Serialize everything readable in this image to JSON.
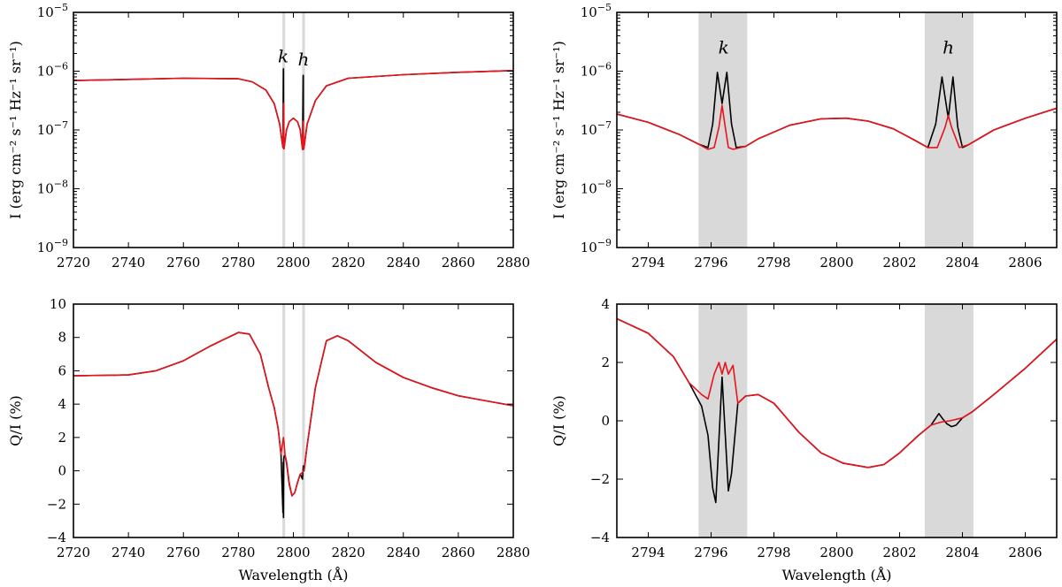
{
  "colors": {
    "series_black": "#000000",
    "series_red": "#e8131b",
    "shade": "#d9d9d9"
  },
  "chart_data": [
    {
      "id": "top-left",
      "type": "line",
      "yscale": "log",
      "xlim": [
        2720,
        2880
      ],
      "ylim_exp": [
        -9,
        -5
      ],
      "xticks": [
        2720,
        2740,
        2760,
        2780,
        2800,
        2820,
        2840,
        2860,
        2880
      ],
      "ytick_exps": [
        -9,
        -8,
        -7,
        -6,
        -5
      ],
      "xlabel": "",
      "ylabel": "I (erg cm⁻² s⁻¹ Hz⁻¹ sr⁻¹)",
      "shaded_bands": [
        [
          2796.0,
          2797.0
        ],
        [
          2803.2,
          2804.2
        ]
      ],
      "line_labels": [
        {
          "text": "k",
          "x": 2796.3,
          "y_exp": -5.85
        },
        {
          "text": "h",
          "x": 2803.7,
          "y_exp": -5.9
        }
      ],
      "series": [
        {
          "name": "black",
          "x": [
            2720,
            2740,
            2760,
            2780,
            2785,
            2790,
            2793,
            2795,
            2796.2,
            2796.35,
            2796.4,
            2796.45,
            2796.6,
            2797.5,
            2798.5,
            2800,
            2801.5,
            2802.5,
            2803.3,
            2803.55,
            2803.6,
            2803.65,
            2803.8,
            2805,
            2808,
            2812,
            2820,
            2840,
            2860,
            2880
          ],
          "y_exp": [
            -6.16,
            -6.14,
            -6.12,
            -6.13,
            -6.18,
            -6.32,
            -6.55,
            -6.9,
            -7.3,
            -5.97,
            -5.96,
            -7.3,
            -7.32,
            -7.0,
            -6.86,
            -6.8,
            -6.86,
            -7.0,
            -7.33,
            -6.08,
            -6.07,
            -7.33,
            -7.32,
            -6.9,
            -6.5,
            -6.25,
            -6.12,
            -6.06,
            -6.02,
            -5.99
          ]
        },
        {
          "name": "red",
          "x": [
            2720,
            2740,
            2760,
            2780,
            2785,
            2790,
            2793,
            2795,
            2796.2,
            2796.4,
            2796.45,
            2796.6,
            2797.5,
            2798.5,
            2800,
            2801.5,
            2802.5,
            2803.3,
            2803.55,
            2803.8,
            2805,
            2808,
            2812,
            2820,
            2840,
            2860,
            2880
          ],
          "y_exp": [
            -6.16,
            -6.14,
            -6.12,
            -6.13,
            -6.18,
            -6.32,
            -6.55,
            -6.9,
            -7.3,
            -6.55,
            -6.55,
            -7.32,
            -7.0,
            -6.86,
            -6.8,
            -6.86,
            -7.0,
            -7.33,
            -6.85,
            -7.32,
            -6.9,
            -6.5,
            -6.25,
            -6.12,
            -6.06,
            -6.02,
            -5.99
          ]
        }
      ]
    },
    {
      "id": "top-right",
      "type": "line",
      "yscale": "log",
      "xlim": [
        2793,
        2807
      ],
      "ylim_exp": [
        -9,
        -5
      ],
      "xticks": [
        2794,
        2796,
        2798,
        2800,
        2802,
        2804,
        2806
      ],
      "ytick_exps": [
        -9,
        -8,
        -7,
        -6,
        -5
      ],
      "xlabel": "",
      "ylabel": "I (erg cm⁻² s⁻¹ Hz⁻¹ sr⁻¹)",
      "shaded_bands": [
        [
          2795.6,
          2797.15
        ],
        [
          2802.8,
          2804.35
        ]
      ],
      "line_labels": [
        {
          "text": "k",
          "x": 2796.4,
          "y_exp": -5.7
        },
        {
          "text": "h",
          "x": 2803.55,
          "y_exp": -5.7
        }
      ],
      "series": [
        {
          "name": "black",
          "x": [
            2793,
            2794,
            2795,
            2795.6,
            2795.9,
            2796.05,
            2796.2,
            2796.35,
            2796.5,
            2796.65,
            2796.8,
            2797.1,
            2797.5,
            2798.5,
            2799.5,
            2800.3,
            2801,
            2801.8,
            2802.5,
            2802.9,
            2803.15,
            2803.35,
            2803.55,
            2803.7,
            2803.85,
            2804,
            2804.2,
            2805,
            2806,
            2807
          ],
          "y_exp": [
            -6.73,
            -6.87,
            -7.08,
            -7.24,
            -7.3,
            -6.9,
            -6.02,
            -6.55,
            -6.02,
            -6.9,
            -7.3,
            -7.28,
            -7.15,
            -6.92,
            -6.81,
            -6.8,
            -6.85,
            -6.98,
            -7.18,
            -7.3,
            -6.9,
            -6.1,
            -6.8,
            -6.1,
            -6.95,
            -7.3,
            -7.25,
            -7.0,
            -6.8,
            -6.63
          ]
        },
        {
          "name": "red",
          "x": [
            2793,
            2794,
            2795,
            2795.6,
            2795.9,
            2796.1,
            2796.25,
            2796.35,
            2796.45,
            2796.55,
            2796.7,
            2797.1,
            2797.5,
            2798.5,
            2799.5,
            2800.3,
            2801,
            2801.8,
            2802.5,
            2802.9,
            2803.2,
            2803.45,
            2803.55,
            2803.65,
            2803.9,
            2804.2,
            2805,
            2806,
            2807
          ],
          "y_exp": [
            -6.73,
            -6.87,
            -7.08,
            -7.24,
            -7.33,
            -7.3,
            -6.95,
            -6.58,
            -6.95,
            -7.3,
            -7.33,
            -7.28,
            -7.15,
            -6.92,
            -6.81,
            -6.8,
            -6.85,
            -6.98,
            -7.18,
            -7.3,
            -7.3,
            -6.95,
            -6.75,
            -6.95,
            -7.3,
            -7.25,
            -7.0,
            -6.8,
            -6.63
          ]
        }
      ]
    },
    {
      "id": "bottom-left",
      "type": "line",
      "yscale": "linear",
      "xlim": [
        2720,
        2880
      ],
      "ylim": [
        -4,
        10
      ],
      "xticks": [
        2720,
        2740,
        2760,
        2780,
        2800,
        2820,
        2840,
        2860,
        2880
      ],
      "yticks": [
        -4,
        -2,
        0,
        2,
        4,
        6,
        8,
        10
      ],
      "xlabel": "Wavelength (Å)",
      "ylabel": "Q/I (%)",
      "shaded_bands": [
        [
          2796.0,
          2797.0
        ],
        [
          2803.2,
          2804.2
        ]
      ],
      "series": [
        {
          "name": "black",
          "x": [
            2720,
            2740,
            2750,
            2760,
            2770,
            2780,
            2784,
            2788,
            2791,
            2793,
            2794.5,
            2795.5,
            2796.2,
            2796.3,
            2796.4,
            2796.5,
            2796.7,
            2797,
            2797.5,
            2798.5,
            2799.5,
            2800.5,
            2801.5,
            2802.5,
            2803.3,
            2803.6,
            2803.9,
            2805,
            2808,
            2812,
            2816,
            2820,
            2830,
            2840,
            2850,
            2860,
            2870,
            2880
          ],
          "y_exp": [
            5.7,
            5.75,
            6.0,
            6.6,
            7.5,
            8.3,
            8.2,
            7.0,
            5.0,
            3.8,
            2.5,
            1.0,
            -2.5,
            0.5,
            -2.8,
            0.7,
            0.9,
            0.9,
            0.5,
            -0.8,
            -1.5,
            -1.3,
            -0.7,
            -0.2,
            -0.5,
            0.3,
            0,
            1.5,
            5.0,
            7.8,
            8.1,
            7.8,
            6.5,
            5.6,
            5.0,
            4.5,
            4.2,
            3.9
          ]
        },
        {
          "name": "red",
          "x": [
            2720,
            2740,
            2750,
            2760,
            2770,
            2780,
            2784,
            2788,
            2791,
            2793,
            2794.5,
            2795.5,
            2796.2,
            2796.4,
            2796.6,
            2797,
            2797.5,
            2798.5,
            2799.5,
            2800.5,
            2801.5,
            2802.5,
            2803.3,
            2803.6,
            2803.9,
            2805,
            2808,
            2812,
            2816,
            2820,
            2830,
            2840,
            2850,
            2860,
            2870,
            2880
          ],
          "y_exp": [
            5.7,
            5.75,
            6.0,
            6.6,
            7.5,
            8.3,
            8.2,
            7.0,
            5.0,
            3.8,
            2.5,
            1.0,
            1.8,
            2.0,
            1.7,
            0.9,
            0.6,
            -0.7,
            -1.5,
            -1.3,
            -0.7,
            -0.2,
            -0.1,
            0,
            0.05,
            1.5,
            5.0,
            7.8,
            8.1,
            7.8,
            6.5,
            5.6,
            5.0,
            4.5,
            4.2,
            3.9
          ]
        }
      ]
    },
    {
      "id": "bottom-right",
      "type": "line",
      "yscale": "linear",
      "xlim": [
        2793,
        2807
      ],
      "ylim": [
        -4,
        4
      ],
      "xticks": [
        2794,
        2796,
        2798,
        2800,
        2802,
        2804,
        2806
      ],
      "yticks": [
        -4,
        -2,
        0,
        2,
        4
      ],
      "xlabel": "Wavelength (Å)",
      "ylabel": "Q/I (%)",
      "shaded_bands": [
        [
          2795.6,
          2797.15
        ],
        [
          2802.8,
          2804.35
        ]
      ],
      "series": [
        {
          "name": "black",
          "x": [
            2793,
            2794,
            2794.8,
            2795.3,
            2795.7,
            2795.9,
            2796.05,
            2796.15,
            2796.35,
            2796.55,
            2796.65,
            2796.85,
            2797.1,
            2797.5,
            2798,
            2798.8,
            2799.5,
            2800.2,
            2801,
            2801.5,
            2802,
            2802.6,
            2803,
            2803.25,
            2803.35,
            2803.5,
            2803.65,
            2803.8,
            2804,
            2804.3,
            2805,
            2806,
            2807
          ],
          "y_exp": [
            3.5,
            3.0,
            2.2,
            1.3,
            0.5,
            -0.5,
            -2.3,
            -2.8,
            1.5,
            -2.4,
            -1.8,
            0.6,
            0.85,
            0.9,
            0.6,
            -0.4,
            -1.1,
            -1.45,
            -1.6,
            -1.5,
            -1.1,
            -0.5,
            -0.15,
            0.25,
            0.1,
            -0.1,
            -0.2,
            -0.15,
            0.1,
            0.3,
            0.9,
            1.8,
            2.8
          ]
        },
        {
          "name": "red",
          "x": [
            2793,
            2794,
            2794.8,
            2795.3,
            2795.7,
            2795.9,
            2796.1,
            2796.25,
            2796.35,
            2796.45,
            2796.55,
            2796.7,
            2796.85,
            2797.1,
            2797.5,
            2798,
            2798.8,
            2799.5,
            2800.2,
            2801,
            2801.5,
            2802,
            2802.6,
            2803,
            2803.3,
            2803.6,
            2804,
            2804.3,
            2805,
            2806,
            2807
          ],
          "y_exp": [
            3.5,
            3.0,
            2.2,
            1.3,
            0.9,
            0.75,
            1.6,
            2.0,
            1.6,
            2.0,
            1.6,
            1.9,
            0.6,
            0.85,
            0.9,
            0.6,
            -0.4,
            -1.1,
            -1.45,
            -1.6,
            -1.5,
            -1.1,
            -0.5,
            -0.15,
            -0.05,
            0,
            0.1,
            0.3,
            0.9,
            1.8,
            2.8
          ]
        }
      ]
    }
  ]
}
